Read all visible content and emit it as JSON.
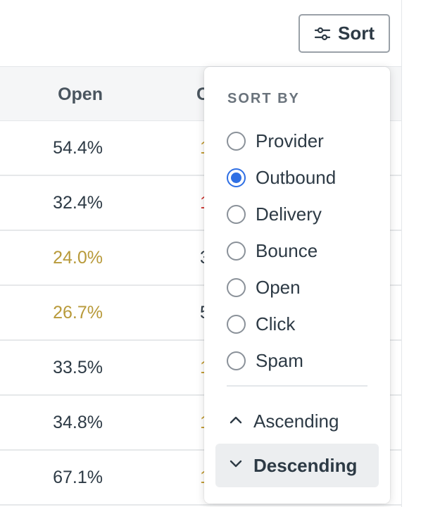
{
  "toolbar": {
    "sort_label": "Sort"
  },
  "table": {
    "columns": {
      "open": "Open",
      "click": "C"
    },
    "rows": [
      {
        "open": "54.4%",
        "open_color": "#2d3a45",
        "click": "1",
        "click_color": "#c29a2c"
      },
      {
        "open": "32.4%",
        "open_color": "#2d3a45",
        "click": "1",
        "click_color": "#d0312d"
      },
      {
        "open": "24.0%",
        "open_color": "#b89a3a",
        "click": "3",
        "click_color": "#2d3a45"
      },
      {
        "open": "26.7%",
        "open_color": "#b89a3a",
        "click": "5",
        "click_color": "#2d3a45"
      },
      {
        "open": "33.5%",
        "open_color": "#2d3a45",
        "click": "1",
        "click_color": "#c29a2c"
      },
      {
        "open": "34.8%",
        "open_color": "#2d3a45",
        "click": "1",
        "click_color": "#c29a2c"
      },
      {
        "open": "67.1%",
        "open_color": "#2d3a45",
        "click": "1",
        "click_color": "#c29a2c"
      }
    ]
  },
  "sort_menu": {
    "heading": "SORT BY",
    "options": [
      {
        "label": "Provider",
        "checked": false
      },
      {
        "label": "Outbound",
        "checked": true
      },
      {
        "label": "Delivery",
        "checked": false
      },
      {
        "label": "Bounce",
        "checked": false
      },
      {
        "label": "Open",
        "checked": false
      },
      {
        "label": "Click",
        "checked": false
      },
      {
        "label": "Spam",
        "checked": false
      }
    ],
    "ascending_label": "Ascending",
    "descending_label": "Descending",
    "selected_order": "descending"
  },
  "colors": {
    "accent": "#2f6fe4",
    "warning_text": "#b89a3a",
    "danger_text": "#d0312d"
  }
}
